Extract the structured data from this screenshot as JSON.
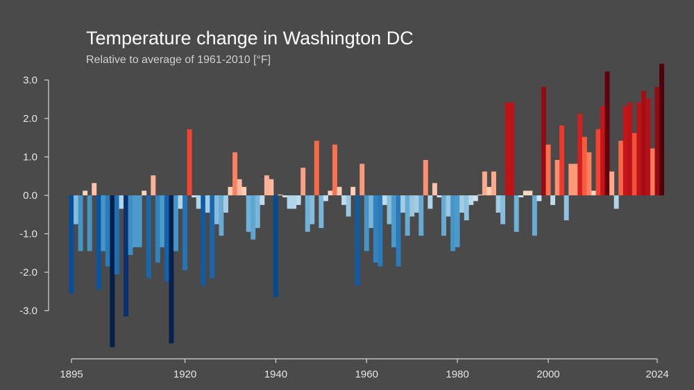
{
  "title": "Temperature change in Washington DC",
  "subtitle": "Relative to average of 1961-2010  [°F]",
  "chart_data": {
    "type": "bar",
    "title": "Temperature change in Washington DC",
    "subtitle": "Relative to average of 1961-2010  [°F]",
    "xlabel": "",
    "ylabel": "",
    "xlim": [
      1895,
      2024
    ],
    "ylim": [
      -4.0,
      3.5
    ],
    "y_ticks": [
      3.0,
      2.0,
      1.0,
      0.0,
      -1.0,
      -2.0,
      -3.0
    ],
    "y_tick_labels": [
      "3.0",
      "2.0",
      "1.0",
      "0.0",
      "-1.0",
      "-2.0",
      "-3.0"
    ],
    "x_ticks": [
      1895,
      1920,
      1940,
      1960,
      1980,
      2000,
      2024
    ],
    "x_tick_labels": [
      "1895",
      "1920",
      "1940",
      "1960",
      "1980",
      "2000",
      "2024"
    ],
    "grid": false,
    "legend": "none",
    "color_scale": "blue (colder) to red (warmer)",
    "start_year": 1895,
    "values": [
      -2.55,
      -0.75,
      -1.45,
      0.12,
      -1.45,
      0.32,
      -2.45,
      -1.45,
      -1.85,
      -3.95,
      -2.05,
      -0.35,
      -3.15,
      -1.55,
      -1.35,
      -1.35,
      0.12,
      -2.15,
      0.52,
      -1.75,
      -1.35,
      -2.25,
      -3.85,
      -1.45,
      -0.35,
      -1.95,
      1.72,
      -0.05,
      -0.35,
      -2.35,
      -0.45,
      -2.15,
      -0.75,
      -1.05,
      -0.45,
      0.22,
      1.12,
      0.42,
      0.22,
      -0.95,
      -1.15,
      -0.85,
      -0.25,
      0.52,
      0.42,
      -2.65,
      0.02,
      -0.05,
      -0.35,
      -0.35,
      -0.25,
      0.72,
      -0.95,
      -0.75,
      1.42,
      -0.85,
      -0.15,
      0.12,
      1.32,
      0.22,
      -0.25,
      -0.55,
      0.22,
      -2.35,
      0.82,
      -1.45,
      -0.85,
      -1.75,
      -1.85,
      -0.25,
      -0.75,
      -1.35,
      -1.85,
      -0.45,
      -1.05,
      -0.55,
      -0.45,
      -1.05,
      0.92,
      -0.35,
      0.32,
      -0.05,
      -1.05,
      -0.55,
      -1.45,
      -1.35,
      -0.45,
      -0.65,
      -0.25,
      -0.15,
      0.02,
      0.62,
      0.22,
      0.62,
      -0.45,
      -0.75,
      2.42,
      2.42,
      -0.95,
      -0.05,
      0.12,
      0.12,
      -1.05,
      -0.15,
      2.82,
      1.32,
      -0.25,
      0.92,
      1.82,
      -0.65,
      0.82,
      0.82,
      2.12,
      1.52,
      1.12,
      0.12,
      1.72,
      2.32,
      3.22,
      0.62,
      -0.35,
      1.42,
      2.32,
      2.42,
      1.62,
      2.42,
      2.72,
      2.52,
      1.22,
      2.82,
      3.42
    ]
  }
}
